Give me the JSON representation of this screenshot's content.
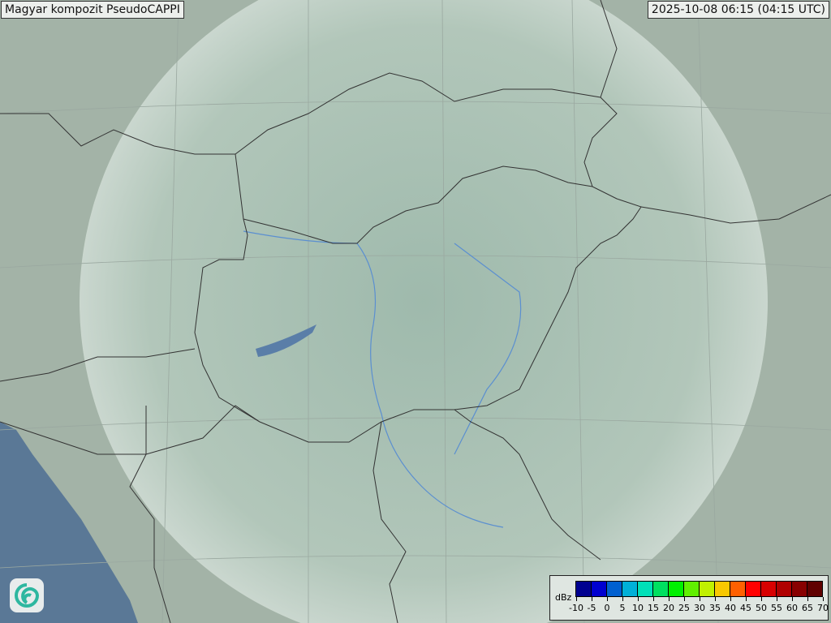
{
  "title": "Magyar kompozit  PseudoCAPPI",
  "timestamp": "2025-10-08 06:15 (04:15 UTC)",
  "legend": {
    "unit": "dBz",
    "ticks": [
      "-10",
      "-5",
      "0",
      "5",
      "10",
      "15",
      "20",
      "25",
      "30",
      "35",
      "40",
      "45",
      "50",
      "55",
      "60",
      "65",
      "70"
    ],
    "colors": [
      "#000090",
      "#0000d0",
      "#0060d0",
      "#00b0d8",
      "#00e0b8",
      "#00e060",
      "#00f000",
      "#60f000",
      "#c0f000",
      "#f8c800",
      "#ff6000",
      "#ff0000",
      "#d80000",
      "#b00000",
      "#880000",
      "#600000"
    ]
  },
  "map": {
    "land": "#a9b9ac",
    "sea": "#5a7896",
    "radar_coverage": "#dfe9e3",
    "border": "#333333",
    "river": "#5b8fd0"
  },
  "logo": {
    "icon": "swirl-logo-icon"
  }
}
